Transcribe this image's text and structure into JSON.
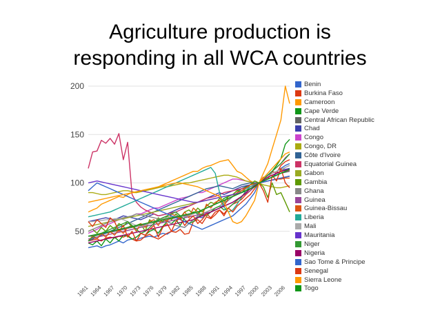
{
  "slide": {
    "title_line1": "Agriculture production is",
    "title_line2": "responding in all WCA countries"
  },
  "chart_data": {
    "type": "line",
    "title": "",
    "xlabel": "",
    "ylabel": "",
    "ylim": [
      0,
      205
    ],
    "y_ticks": [
      50,
      100,
      150,
      200
    ],
    "x_tick_labels": [
      "1961",
      "1964",
      "1967",
      "1970",
      "1973",
      "1976",
      "1979",
      "1982",
      "1985",
      "1988",
      "1991",
      "1994",
      "1997",
      "2000",
      "2003",
      "2006"
    ],
    "x": [
      1961,
      1962,
      1963,
      1964,
      1965,
      1966,
      1967,
      1968,
      1969,
      1970,
      1971,
      1972,
      1973,
      1974,
      1975,
      1976,
      1977,
      1978,
      1979,
      1980,
      1981,
      1982,
      1983,
      1984,
      1985,
      1986,
      1987,
      1988,
      1989,
      1990,
      1991,
      1992,
      1993,
      1994,
      1995,
      1996,
      1997,
      1998,
      1999,
      2000,
      2001,
      2002,
      2003,
      2004,
      2005,
      2006,
      2007
    ],
    "grid": true,
    "legend_position": "right",
    "series": [
      {
        "name": "Benin",
        "color": "#3366cc",
        "values": [
          33,
          34,
          35,
          33,
          35,
          36,
          38,
          40,
          38,
          41,
          42,
          41,
          43,
          44,
          45,
          44,
          46,
          48,
          47,
          50,
          52,
          55,
          54,
          58,
          62,
          65,
          64,
          68,
          70,
          72,
          74,
          78,
          82,
          86,
          90,
          94,
          96,
          98,
          100,
          100,
          104,
          108,
          110,
          112,
          115,
          118,
          120
        ]
      },
      {
        "name": "Burkina Faso",
        "color": "#dc3912",
        "values": [
          40,
          41,
          42,
          40,
          43,
          44,
          43,
          45,
          44,
          46,
          42,
          40,
          41,
          45,
          47,
          44,
          42,
          45,
          48,
          50,
          49,
          52,
          47,
          48,
          60,
          62,
          58,
          65,
          63,
          67,
          72,
          68,
          74,
          78,
          80,
          83,
          88,
          92,
          98,
          100,
          106,
          104,
          112,
          110,
          118,
          122,
          124
        ]
      },
      {
        "name": "Cameroon",
        "color": "#ff9900",
        "values": [
          70,
          72,
          74,
          78,
          80,
          82,
          84,
          86,
          85,
          88,
          90,
          90,
          91,
          92,
          93,
          94,
          96,
          98,
          100,
          102,
          104,
          106,
          108,
          110,
          112,
          112,
          115,
          117,
          118,
          120,
          122,
          123,
          124,
          118,
          112,
          110,
          106,
          102,
          100,
          100,
          110,
          120,
          135,
          150,
          165,
          200,
          182
        ]
      },
      {
        "name": "Cape Verde",
        "color": "#109618",
        "values": [
          38,
          36,
          40,
          35,
          42,
          38,
          44,
          40,
          46,
          45,
          42,
          44,
          48,
          46,
          50,
          52,
          48,
          55,
          60,
          58,
          62,
          56,
          64,
          66,
          70,
          68,
          72,
          74,
          76,
          78,
          80,
          84,
          86,
          88,
          92,
          94,
          96,
          98,
          100,
          100,
          104,
          108,
          112,
          118,
          125,
          140,
          145
        ]
      },
      {
        "name": "Central African Republic",
        "color": "#636363",
        "values": [
          45,
          45,
          46,
          47,
          48,
          49,
          50,
          51,
          52,
          53,
          54,
          55,
          56,
          57,
          58,
          59,
          60,
          60,
          62,
          63,
          64,
          65,
          66,
          67,
          68,
          70,
          72,
          74,
          76,
          78,
          80,
          82,
          84,
          86,
          88,
          90,
          92,
          94,
          96,
          100,
          102,
          104,
          106,
          108,
          110,
          111,
          112
        ]
      },
      {
        "name": "Chad",
        "color": "#3b3eac",
        "values": [
          60,
          61,
          62,
          63,
          64,
          63,
          62,
          64,
          66,
          65,
          64,
          63,
          62,
          64,
          66,
          68,
          66,
          67,
          68,
          70,
          72,
          74,
          75,
          76,
          78,
          80,
          82,
          84,
          86,
          88,
          90,
          88,
          90,
          92,
          94,
          96,
          97,
          98,
          99,
          100,
          102,
          104,
          106,
          110,
          112,
          114,
          115
        ]
      },
      {
        "name": "Congo",
        "color": "#cc44cc",
        "values": [
          48,
          50,
          52,
          55,
          56,
          58,
          60,
          62,
          63,
          64,
          66,
          68,
          68,
          70,
          72,
          74,
          74,
          76,
          78,
          80,
          82,
          84,
          85,
          86,
          88,
          90,
          90,
          92,
          94,
          96,
          98,
          100,
          102,
          104,
          104,
          103,
          102,
          101,
          100,
          100,
          101,
          102,
          103,
          104,
          105,
          106,
          107
        ]
      },
      {
        "name": "Congo, DR",
        "color": "#aaaa11",
        "values": [
          90,
          90,
          89,
          88,
          88,
          89,
          90,
          91,
          92,
          92,
          91,
          90,
          91,
          92,
          93,
          94,
          95,
          96,
          96,
          97,
          98,
          99,
          100,
          100,
          101,
          102,
          103,
          104,
          105,
          106,
          107,
          108,
          108,
          107,
          106,
          104,
          102,
          101,
          100,
          100,
          98,
          97,
          96,
          95,
          95,
          96,
          97
        ]
      },
      {
        "name": "Côte d'Ivoire",
        "color": "#316395",
        "values": [
          40,
          42,
          44,
          46,
          48,
          50,
          52,
          54,
          56,
          58,
          60,
          62,
          64,
          66,
          68,
          70,
          72,
          74,
          76,
          78,
          80,
          82,
          84,
          86,
          88,
          90,
          92,
          94,
          95,
          96,
          97,
          96,
          95,
          94,
          96,
          98,
          99,
          100,
          100,
          100,
          101,
          102,
          103,
          104,
          105,
          106,
          107
        ]
      },
      {
        "name": "Equatorial Guinea",
        "color": "#cc3366",
        "values": [
          115,
          132,
          133,
          144,
          141,
          146,
          140,
          151,
          124,
          142,
          88,
          80,
          75,
          72,
          70,
          68,
          66,
          67,
          68,
          69,
          70,
          72,
          74,
          76,
          78,
          80,
          82,
          84,
          85,
          86,
          88,
          90,
          91,
          92,
          93,
          94,
          95,
          96,
          98,
          100,
          102,
          104,
          106,
          108,
          110,
          112,
          113
        ]
      },
      {
        "name": "Gabon",
        "color": "#99aa22",
        "values": [
          55,
          56,
          57,
          58,
          59,
          60,
          61,
          62,
          63,
          64,
          65,
          66,
          67,
          68,
          69,
          70,
          71,
          72,
          73,
          74,
          75,
          76,
          77,
          78,
          79,
          80,
          81,
          82,
          83,
          84,
          85,
          86,
          87,
          88,
          89,
          90,
          92,
          94,
          96,
          100,
          101,
          102,
          103,
          104,
          105,
          106,
          107
        ]
      },
      {
        "name": "Gambia",
        "color": "#5e9900",
        "values": [
          50,
          52,
          48,
          54,
          50,
          56,
          52,
          58,
          55,
          60,
          54,
          56,
          58,
          50,
          62,
          58,
          64,
          60,
          66,
          62,
          68,
          64,
          70,
          72,
          68,
          74,
          70,
          76,
          80,
          78,
          84,
          80,
          86,
          88,
          92,
          90,
          94,
          98,
          102,
          100,
          96,
          85,
          100,
          88,
          90,
          80,
          70
        ]
      },
      {
        "name": "Ghana",
        "color": "#888888",
        "values": [
          50,
          52,
          54,
          56,
          58,
          60,
          62,
          63,
          64,
          65,
          66,
          68,
          67,
          66,
          65,
          64,
          63,
          62,
          60,
          58,
          56,
          55,
          54,
          58,
          62,
          66,
          68,
          70,
          72,
          74,
          76,
          80,
          82,
          86,
          88,
          92,
          94,
          96,
          98,
          100,
          102,
          104,
          106,
          108,
          112,
          116,
          118
        ]
      },
      {
        "name": "Guinea",
        "color": "#994499",
        "values": [
          42,
          43,
          44,
          45,
          46,
          47,
          48,
          49,
          50,
          51,
          52,
          53,
          54,
          55,
          56,
          57,
          58,
          59,
          60,
          61,
          62,
          63,
          64,
          65,
          66,
          67,
          68,
          69,
          70,
          72,
          74,
          76,
          78,
          80,
          83,
          86,
          89,
          92,
          96,
          100,
          104,
          108,
          112,
          116,
          120,
          126,
          130
        ]
      },
      {
        "name": "Guinea-Bissau",
        "color": "#dd5511",
        "values": [
          40,
          45,
          42,
          48,
          44,
          50,
          46,
          52,
          48,
          54,
          56,
          50,
          58,
          54,
          60,
          62,
          56,
          64,
          60,
          68,
          66,
          62,
          70,
          64,
          74,
          70,
          66,
          78,
          74,
          80,
          82,
          76,
          84,
          86,
          90,
          92,
          95,
          98,
          99,
          100,
          101,
          102,
          103,
          104,
          104,
          105,
          105
        ]
      },
      {
        "name": "Liberia",
        "color": "#22aa99",
        "values": [
          65,
          66,
          67,
          68,
          69,
          70,
          72,
          74,
          76,
          78,
          80,
          82,
          84,
          86,
          88,
          90,
          92,
          94,
          96,
          98,
          100,
          102,
          104,
          106,
          108,
          110,
          112,
          114,
          116,
          110,
          90,
          75,
          70,
          72,
          78,
          85,
          92,
          96,
          98,
          100,
          102,
          104,
          106,
          108,
          110,
          112,
          114
        ]
      },
      {
        "name": "Mali",
        "color": "#aaaaaa",
        "values": [
          60,
          60,
          61,
          61,
          62,
          62,
          63,
          63,
          62,
          60,
          58,
          56,
          55,
          56,
          58,
          60,
          62,
          63,
          64,
          65,
          66,
          66,
          65,
          66,
          68,
          70,
          72,
          74,
          76,
          78,
          80,
          82,
          84,
          86,
          88,
          90,
          92,
          94,
          96,
          100,
          103,
          106,
          110,
          112,
          114,
          116,
          118
        ]
      },
      {
        "name": "Mauritania",
        "color": "#6633cc",
        "values": [
          100,
          101,
          102,
          101,
          100,
          99,
          98,
          97,
          96,
          95,
          94,
          93,
          92,
          91,
          90,
          89,
          88,
          87,
          86,
          85,
          84,
          83,
          82,
          81,
          80,
          80,
          81,
          82,
          83,
          84,
          85,
          86,
          87,
          88,
          89,
          90,
          92,
          94,
          96,
          100,
          101,
          102,
          103,
          104,
          105,
          106,
          107
        ]
      },
      {
        "name": "Niger",
        "color": "#339933",
        "values": [
          40,
          44,
          46,
          48,
          50,
          52,
          54,
          56,
          58,
          60,
          56,
          52,
          48,
          50,
          54,
          58,
          62,
          64,
          66,
          68,
          70,
          66,
          62,
          58,
          60,
          64,
          68,
          66,
          70,
          74,
          76,
          72,
          74,
          78,
          82,
          86,
          90,
          94,
          96,
          100,
          104,
          108,
          112,
          116,
          120,
          125,
          130
        ]
      },
      {
        "name": "Nigeria",
        "color": "#990066",
        "values": [
          38,
          39,
          40,
          41,
          42,
          43,
          44,
          45,
          46,
          47,
          48,
          49,
          50,
          51,
          52,
          53,
          54,
          55,
          56,
          57,
          58,
          59,
          60,
          61,
          62,
          64,
          66,
          68,
          70,
          72,
          74,
          76,
          78,
          80,
          83,
          86,
          90,
          94,
          97,
          100,
          103,
          106,
          108,
          110,
          112,
          113,
          114
        ]
      },
      {
        "name": "Sao Tome & Principe",
        "color": "#3366cc",
        "values": [
          92,
          96,
          100,
          98,
          96,
          94,
          92,
          90,
          88,
          86,
          84,
          82,
          80,
          78,
          76,
          74,
          72,
          70,
          68,
          66,
          64,
          62,
          60,
          58,
          56,
          54,
          52,
          54,
          56,
          58,
          60,
          62,
          64,
          66,
          70,
          74,
          78,
          84,
          90,
          100,
          101,
          102,
          103,
          104,
          105,
          106,
          107
        ]
      },
      {
        "name": "Senegal",
        "color": "#dc3912",
        "values": [
          60,
          55,
          62,
          58,
          54,
          64,
          60,
          50,
          56,
          44,
          50,
          40,
          48,
          46,
          52,
          56,
          44,
          54,
          58,
          50,
          60,
          64,
          56,
          62,
          66,
          58,
          62,
          68,
          64,
          70,
          72,
          66,
          74,
          70,
          76,
          80,
          84,
          88,
          94,
          100,
          92,
          80,
          108,
          102,
          115,
          100,
          95
        ]
      },
      {
        "name": "Sierra Leone",
        "color": "#ff9900",
        "values": [
          80,
          81,
          82,
          83,
          84,
          85,
          86,
          87,
          88,
          89,
          90,
          91,
          92,
          93,
          94,
          95,
          96,
          97,
          98,
          99,
          100,
          100,
          99,
          98,
          97,
          96,
          94,
          92,
          90,
          88,
          86,
          80,
          70,
          60,
          58,
          60,
          66,
          74,
          82,
          100,
          105,
          110,
          115,
          120,
          125,
          130,
          132
        ]
      },
      {
        "name": "Togo",
        "color": "#109618",
        "values": [
          45,
          46,
          47,
          48,
          49,
          50,
          51,
          52,
          53,
          54,
          55,
          56,
          57,
          58,
          59,
          60,
          61,
          62,
          63,
          64,
          65,
          66,
          67,
          68,
          69,
          70,
          72,
          74,
          76,
          78,
          80,
          82,
          84,
          86,
          88,
          90,
          92,
          94,
          96,
          100,
          102,
          104,
          106,
          108,
          110,
          112,
          114
        ]
      }
    ]
  }
}
